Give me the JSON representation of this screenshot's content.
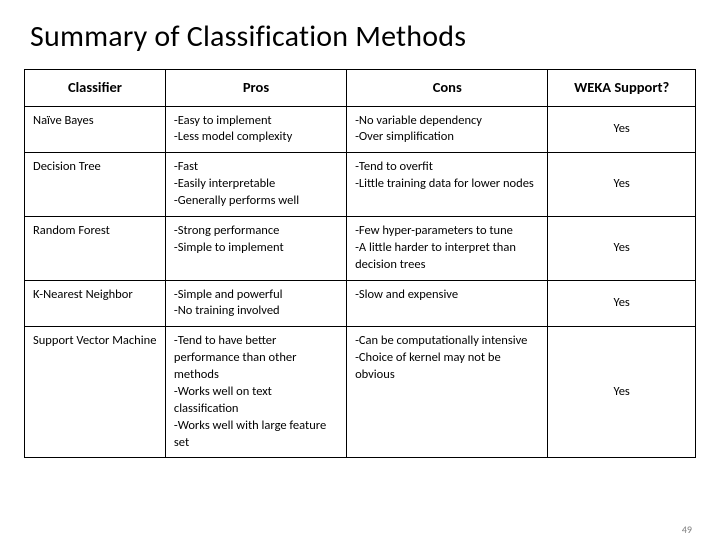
{
  "title": "Summary of Classification Methods",
  "page_number": "49",
  "colors": {
    "background": "#ffffff",
    "text": "#000000",
    "border": "#000000",
    "page_num": "#7f7f7f"
  },
  "typography": {
    "title_fontsize": 30,
    "header_fontsize": 14.5,
    "body_fontsize": 12.5,
    "font_family": "Calibri, Arial, sans-serif"
  },
  "table": {
    "type": "table",
    "column_widths_pct": [
      21,
      27,
      30,
      22
    ],
    "columns": [
      "Classifier",
      "Pros",
      "Cons",
      "WEKA Support?"
    ],
    "rows": [
      {
        "classifier": "Naïve Bayes",
        "pros": "-Easy to implement\n-Less model complexity",
        "cons": "-No variable dependency\n-Over simplification",
        "support": "Yes"
      },
      {
        "classifier": "Decision Tree",
        "pros": "-Fast\n-Easily interpretable\n-Generally performs well",
        "cons": "-Tend to overfit\n-Little training data for lower nodes",
        "support": "Yes"
      },
      {
        "classifier": "Random Forest",
        "pros": "-Strong performance\n-Simple to implement",
        "cons": "-Few hyper-parameters to tune\n-A little harder to interpret than decision trees",
        "support": "Yes"
      },
      {
        "classifier": "K-Nearest Neighbor",
        "pros": "-Simple and powerful\n-No training involved",
        "cons": "-Slow and expensive",
        "support": "Yes"
      },
      {
        "classifier": "Support Vector Machine",
        "pros": "-Tend to have better performance than other methods\n-Works well on text classification\n-Works well with large feature set",
        "cons": "-Can be computationally intensive\n-Choice of kernel may not be obvious",
        "support": "Yes"
      }
    ]
  }
}
